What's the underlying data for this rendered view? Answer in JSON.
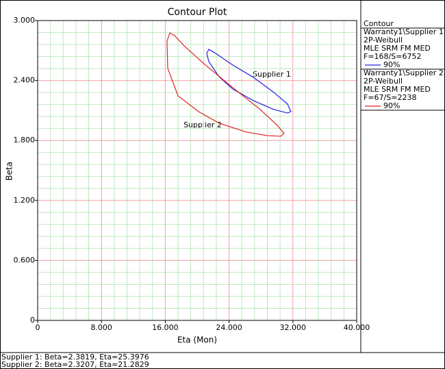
{
  "chart_data": {
    "type": "contour",
    "title": "Contour Plot",
    "x_label": "Eta (Mon)",
    "y_label": "Beta",
    "xlim": [
      0,
      40
    ],
    "ylim": [
      0,
      3
    ],
    "xticks": [
      0,
      {
        "value": 8,
        "label": "8.000"
      },
      {
        "value": 16,
        "label": "16.000"
      },
      {
        "value": 24,
        "label": "24.000"
      },
      {
        "value": 32,
        "label": "32.000"
      },
      {
        "value": 40,
        "label": "40.000"
      }
    ],
    "yticks": [
      0,
      {
        "value": 0.6,
        "label": "0.600"
      },
      {
        "value": 1.2,
        "label": "1.200"
      },
      {
        "value": 1.8,
        "label": "1.800"
      },
      {
        "value": 2.4,
        "label": "2.400"
      },
      {
        "value": 3,
        "label": "3.000"
      }
    ],
    "grid": true,
    "minor_grid_divisions": 5,
    "legend_title": "Contour",
    "annotations": [
      "Supplier 1",
      "Supplier 2"
    ],
    "series": [
      {
        "name": "Warranty1\\Supplier 1",
        "details": [
          "2P-Weibull",
          "MLE SRM FM MED",
          "F=168/S=6752"
        ],
        "level_label": "90%",
        "color": "#2020e0",
        "x": [
          21.46,
          22.32,
          24.46,
          27.04,
          29.61,
          31.33,
          31.76,
          31.33,
          29.61,
          27.04,
          24.46,
          22.75,
          21.46,
          21.2
        ],
        "y": [
          2.712,
          2.671,
          2.555,
          2.432,
          2.281,
          2.164,
          2.089,
          2.075,
          2.11,
          2.199,
          2.315,
          2.438,
          2.589,
          2.671
        ]
      },
      {
        "name": "Warranty1\\Supplier 2",
        "details": [
          "2P-Weibull",
          "MLE SRM FM MED",
          "F=67/S=2238"
        ],
        "level_label": "90%",
        "color": "#e02020",
        "x": [
          16.57,
          17.17,
          18.45,
          21.03,
          24.46,
          27.9,
          30.04,
          30.9,
          30.47,
          28.76,
          26.18,
          22.75,
          20.17,
          17.6,
          16.31,
          16.22
        ],
        "y": [
          2.877,
          2.849,
          2.74,
          2.555,
          2.329,
          2.11,
          1.952,
          1.87,
          1.842,
          1.849,
          1.884,
          1.973,
          2.089,
          2.247,
          2.521,
          2.795
        ]
      }
    ],
    "footer": [
      "Supplier 1: Beta=2.3819, Eta=25.3976",
      "Supplier 2: Beta=2.3207, Eta=21.2829"
    ]
  }
}
